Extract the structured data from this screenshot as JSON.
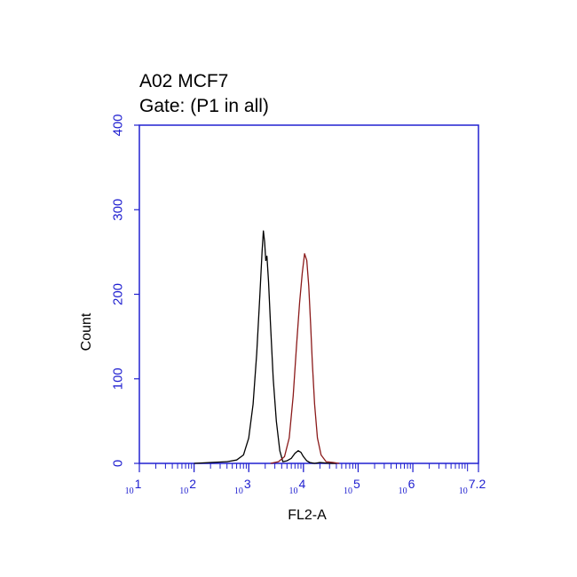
{
  "chart_data": {
    "type": "area",
    "title": "A02 MCF7",
    "subtitle": "Gate: (P1 in all)",
    "xlabel": "FL2-A",
    "ylabel": "Count",
    "xscale": "log",
    "xlim": [
      10,
      15848932
    ],
    "ylim": [
      0,
      400
    ],
    "yticks": [
      0,
      100,
      200,
      300,
      400
    ],
    "xticks": [
      {
        "base": "10",
        "exp": "1",
        "value": 10
      },
      {
        "base": "10",
        "exp": "2",
        "value": 100
      },
      {
        "base": "10",
        "exp": "3",
        "value": 1000
      },
      {
        "base": "10",
        "exp": "4",
        "value": 10000
      },
      {
        "base": "10",
        "exp": "5",
        "value": 100000
      },
      {
        "base": "10",
        "exp": "6",
        "value": 1000000
      },
      {
        "base": "10",
        "exp": "7.2",
        "value": 15848932
      }
    ],
    "grid": false,
    "series": [
      {
        "color": "#000000",
        "points": [
          [
            100,
            0
          ],
          [
            200,
            1
          ],
          [
            400,
            2
          ],
          [
            600,
            4
          ],
          [
            800,
            10
          ],
          [
            1000,
            30
          ],
          [
            1200,
            70
          ],
          [
            1400,
            130
          ],
          [
            1600,
            200
          ],
          [
            1750,
            250
          ],
          [
            1850,
            275
          ],
          [
            1950,
            262
          ],
          [
            2050,
            240
          ],
          [
            2150,
            245
          ],
          [
            2300,
            215
          ],
          [
            2500,
            165
          ],
          [
            2800,
            100
          ],
          [
            3200,
            50
          ],
          [
            3700,
            15
          ],
          [
            4200,
            2
          ],
          [
            5000,
            3
          ],
          [
            6000,
            6
          ],
          [
            7000,
            12
          ],
          [
            8000,
            15
          ],
          [
            9000,
            13
          ],
          [
            10000,
            8
          ],
          [
            11500,
            3
          ],
          [
            13000,
            1
          ],
          [
            16000,
            0
          ],
          [
            20000,
            1
          ],
          [
            30000,
            0
          ],
          [
            40000,
            0
          ]
        ]
      },
      {
        "color": "#8b1a1a",
        "points": [
          [
            2500,
            0
          ],
          [
            3500,
            2
          ],
          [
            4500,
            8
          ],
          [
            5500,
            30
          ],
          [
            6500,
            80
          ],
          [
            7500,
            140
          ],
          [
            8500,
            190
          ],
          [
            9500,
            225
          ],
          [
            10500,
            248
          ],
          [
            11500,
            240
          ],
          [
            12500,
            210
          ],
          [
            13500,
            165
          ],
          [
            14500,
            120
          ],
          [
            16000,
            70
          ],
          [
            18000,
            30
          ],
          [
            21000,
            10
          ],
          [
            26000,
            2
          ],
          [
            35000,
            1
          ],
          [
            45000,
            0
          ]
        ]
      }
    ]
  }
}
